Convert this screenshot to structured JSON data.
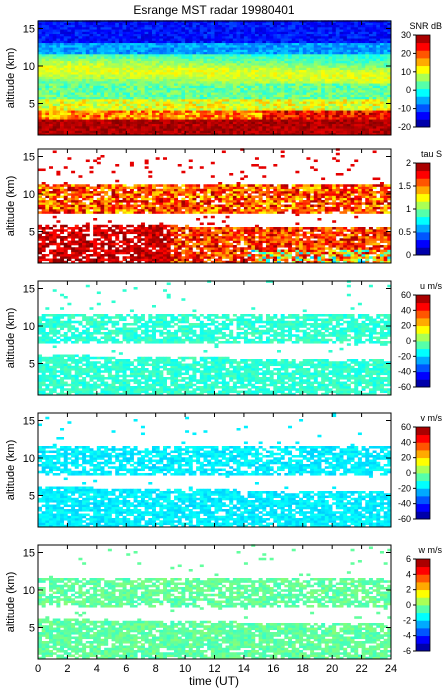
{
  "title": "Esrange MST radar 19980401",
  "x_axis": {
    "label": "time (UT)",
    "range": [
      0,
      24
    ],
    "ticks": [
      "0",
      "2",
      "4",
      "6",
      "8",
      "10",
      "12",
      "14",
      "16",
      "18",
      "20",
      "22",
      "24"
    ]
  },
  "colormap": [
    "#00007f",
    "#0000ff",
    "#007fff",
    "#00ffff",
    "#7fff7f",
    "#ffff00",
    "#ff7f00",
    "#ff0000",
    "#7f0000"
  ],
  "chart_data": [
    {
      "type": "heatmap",
      "panel": "snr",
      "ylabel": "altitude (km)",
      "ylim": [
        0.8,
        16
      ],
      "yticks": [
        "5",
        "10",
        "15"
      ],
      "colorbar": {
        "label": "SNR dB",
        "range": [
          -20,
          30
        ],
        "ticks": [
          "-20",
          "-10",
          "0",
          "10",
          "20",
          "30"
        ]
      },
      "xlim": [
        0,
        24
      ],
      "description_levels": {
        "near_ground_1_3km": "approx 25-30 dB (dark red), strongest 16-24 UT",
        "layer_3_5km": "approx 5-15 dB",
        "layer_8_11km": "approx 0-10 dB",
        "above_12km": "approx -15 to -20 dB"
      }
    },
    {
      "type": "heatmap",
      "panel": "tau",
      "ylabel": "altitude (km)",
      "ylim": [
        0.8,
        16
      ],
      "yticks": [
        "5",
        "10",
        "15"
      ],
      "colorbar": {
        "label": "tau S",
        "range": [
          0,
          2
        ],
        "ticks": [
          "0",
          "0.5",
          "1",
          "1.5",
          "2"
        ]
      },
      "xlim": [
        0,
        24
      ]
    },
    {
      "type": "heatmap",
      "panel": "u",
      "ylabel": "altitude (km)",
      "ylim": [
        0.8,
        16
      ],
      "yticks": [
        "5",
        "10",
        "15"
      ],
      "colorbar": {
        "label": "u m/s",
        "range": [
          -60,
          60
        ],
        "ticks": [
          "-60",
          "-40",
          "-20",
          "0",
          "20",
          "40",
          "60"
        ]
      },
      "xlim": [
        0,
        24
      ]
    },
    {
      "type": "heatmap",
      "panel": "v",
      "ylabel": "altitude (km)",
      "ylim": [
        0.8,
        16
      ],
      "yticks": [
        "5",
        "10",
        "15"
      ],
      "colorbar": {
        "label": "v m/s",
        "range": [
          -60,
          60
        ],
        "ticks": [
          "-60",
          "-40",
          "-20",
          "0",
          "20",
          "40",
          "60"
        ]
      },
      "xlim": [
        0,
        24
      ]
    },
    {
      "type": "heatmap",
      "panel": "w",
      "ylabel": "altitude (km)",
      "ylim": [
        0.8,
        16
      ],
      "yticks": [
        "5",
        "10",
        "15"
      ],
      "colorbar": {
        "label": "w m/s",
        "range": [
          -6,
          6
        ],
        "ticks": [
          "-6",
          "-4",
          "-2",
          "0",
          "2",
          "4",
          "6"
        ]
      },
      "xlim": [
        0,
        24
      ]
    }
  ]
}
